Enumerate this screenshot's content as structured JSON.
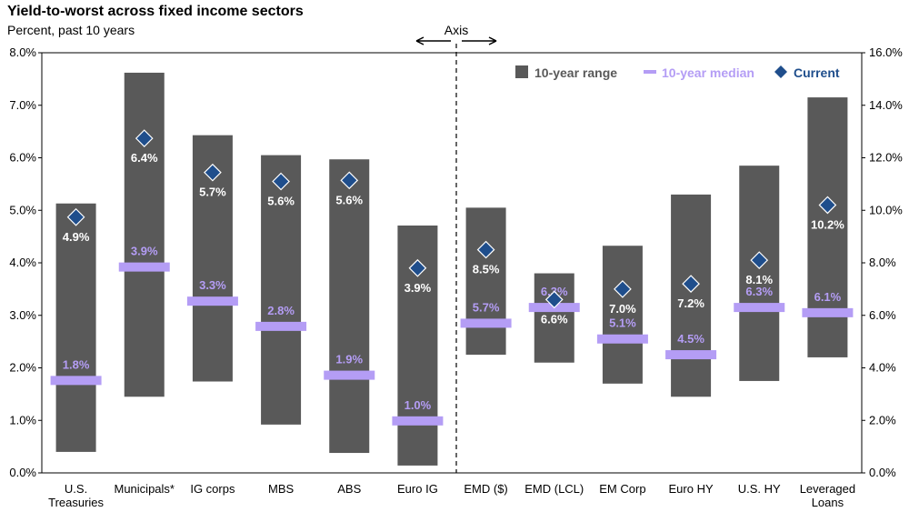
{
  "title": "Yield-to-worst across fixed income sectors",
  "subtitle": "Percent, past 10 years",
  "chart_data": {
    "type": "bar",
    "title": "Yield-to-worst across fixed income sectors",
    "subtitle": "Percent, past 10 years",
    "axis_note": "Axis",
    "left_axis": {
      "ylim": [
        0,
        8
      ],
      "ticks": [
        "0.0%",
        "1.0%",
        "2.0%",
        "3.0%",
        "4.0%",
        "5.0%",
        "6.0%",
        "7.0%",
        "8.0%"
      ]
    },
    "right_axis": {
      "ylim": [
        0,
        16
      ],
      "ticks": [
        "0.0%",
        "2.0%",
        "4.0%",
        "6.0%",
        "8.0%",
        "10.0%",
        "12.0%",
        "14.0%",
        "16.0%"
      ]
    },
    "legend": {
      "placement": "top-right",
      "range_label": "10-year range",
      "median_label": "10-year median",
      "current_label": "Current"
    },
    "colors": {
      "range": "#595959",
      "median": "#b49df5",
      "current": "#1f4e8c"
    },
    "categories": [
      {
        "name": "U.S. Treasuries",
        "lines": [
          "U.S.",
          "Treasuries"
        ],
        "axis": "left",
        "low": 0.4,
        "high": 5.13,
        "median": 1.76,
        "current": 4.87,
        "median_label": "1.8%",
        "current_label": "4.9%"
      },
      {
        "name": "Municipals*",
        "lines": [
          "Municipals*"
        ],
        "axis": "left",
        "low": 1.45,
        "high": 7.62,
        "median": 3.92,
        "current": 6.37,
        "median_label": "3.9%",
        "current_label": "6.4%"
      },
      {
        "name": "IG corps",
        "lines": [
          "IG corps"
        ],
        "axis": "left",
        "low": 1.74,
        "high": 6.43,
        "median": 3.27,
        "current": 5.72,
        "median_label": "3.3%",
        "current_label": "5.7%"
      },
      {
        "name": "MBS",
        "lines": [
          "MBS"
        ],
        "axis": "left",
        "low": 0.92,
        "high": 6.05,
        "median": 2.79,
        "current": 5.55,
        "median_label": "2.8%",
        "current_label": "5.6%"
      },
      {
        "name": "ABS",
        "lines": [
          "ABS"
        ],
        "axis": "left",
        "low": 0.38,
        "high": 5.97,
        "median": 1.86,
        "current": 5.57,
        "median_label": "1.9%",
        "current_label": "5.6%"
      },
      {
        "name": "Euro IG",
        "lines": [
          "Euro IG"
        ],
        "axis": "left",
        "low": 0.14,
        "high": 4.71,
        "median": 0.99,
        "current": 3.9,
        "median_label": "1.0%",
        "current_label": "3.9%"
      },
      {
        "name": "EMD ($)",
        "lines": [
          "EMD ($)"
        ],
        "axis": "right",
        "low": 4.5,
        "high": 10.1,
        "median": 5.7,
        "current": 8.5,
        "median_label": "5.7%",
        "current_label": "8.5%"
      },
      {
        "name": "EMD (LCL)",
        "lines": [
          "EMD (LCL)"
        ],
        "axis": "right",
        "low": 4.2,
        "high": 7.6,
        "median": 6.3,
        "current": 6.6,
        "median_label": "6.3%",
        "current_label": "6.6%"
      },
      {
        "name": "EM Corp",
        "lines": [
          "EM Corp"
        ],
        "axis": "right",
        "low": 3.4,
        "high": 8.65,
        "median": 5.1,
        "current": 7.0,
        "median_label": "5.1%",
        "current_label": "7.0%"
      },
      {
        "name": "Euro HY",
        "lines": [
          "Euro HY"
        ],
        "axis": "right",
        "low": 2.9,
        "high": 10.6,
        "median": 4.5,
        "current": 7.2,
        "median_label": "4.5%",
        "current_label": "7.2%"
      },
      {
        "name": "U.S. HY",
        "lines": [
          "U.S. HY"
        ],
        "axis": "right",
        "low": 3.5,
        "high": 11.7,
        "median": 6.3,
        "current": 8.1,
        "median_label": "6.3%",
        "current_label": "8.1%"
      },
      {
        "name": "Leveraged Loans",
        "lines": [
          "Leveraged",
          "Loans"
        ],
        "axis": "right",
        "low": 4.4,
        "high": 14.3,
        "median": 6.1,
        "current": 10.2,
        "median_label": "6.1%",
        "current_label": "10.2%"
      }
    ]
  }
}
